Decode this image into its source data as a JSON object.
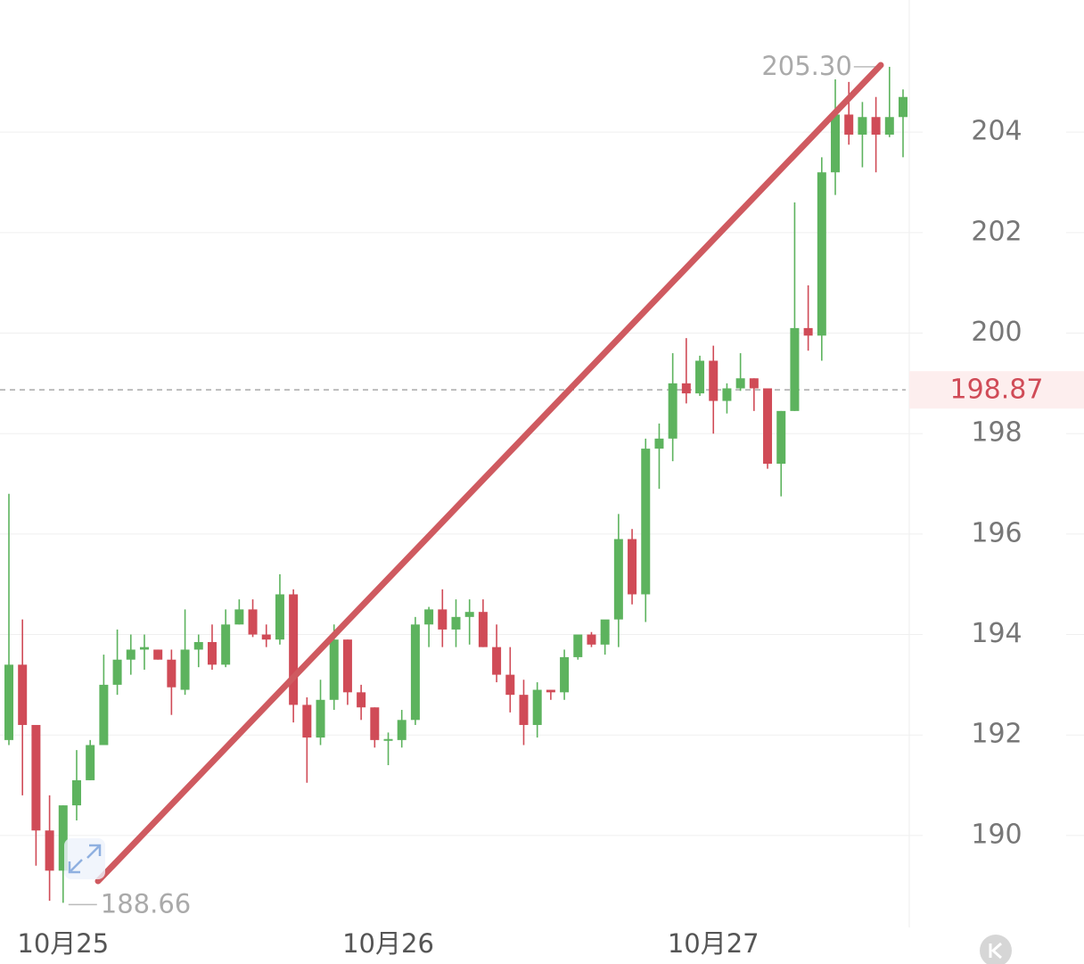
{
  "chart_data": {
    "type": "candlestick",
    "categories": [
      null,
      null,
      null,
      null,
      "10月25",
      null,
      null,
      null,
      null,
      null,
      null,
      null,
      null,
      null,
      null,
      null,
      null,
      null,
      null,
      null,
      null,
      null,
      null,
      null,
      null,
      null,
      null,
      null,
      "10月26",
      null,
      null,
      null,
      null,
      null,
      null,
      null,
      null,
      null,
      null,
      null,
      null,
      null,
      null,
      null,
      null,
      null,
      null,
      null,
      null,
      null,
      null,
      null,
      "10月27",
      null,
      null,
      null,
      null,
      null,
      null,
      null,
      null,
      null,
      null,
      null,
      null,
      null,
      null
    ],
    "open": [
      191.9,
      193.4,
      192.2,
      190.1,
      189.3,
      190.6,
      191.1,
      191.8,
      193.0,
      193.5,
      193.7,
      193.7,
      193.5,
      192.9,
      193.7,
      193.85,
      193.4,
      194.2,
      194.5,
      194.0,
      193.9,
      194.8,
      192.6,
      191.95,
      192.7,
      193.9,
      192.85,
      192.55,
      191.9,
      191.9,
      192.3,
      194.2,
      194.5,
      194.1,
      194.35,
      194.45,
      193.75,
      193.2,
      192.8,
      192.2,
      192.9,
      192.85,
      193.55,
      194.0,
      193.8,
      194.3,
      195.9,
      194.8,
      197.7,
      197.9,
      199.0,
      198.8,
      199.45,
      198.65,
      198.9,
      199.1,
      198.9,
      197.4,
      198.45,
      200.1,
      199.95,
      203.2,
      204.35,
      203.95,
      204.3,
      203.95,
      204.3
    ],
    "high": [
      196.8,
      194.3,
      192.2,
      190.8,
      190.6,
      191.7,
      191.9,
      193.6,
      194.1,
      194.0,
      194.0,
      193.7,
      193.7,
      194.5,
      194.0,
      194.2,
      194.5,
      194.7,
      194.7,
      194.2,
      195.2,
      194.9,
      192.75,
      193.1,
      194.2,
      193.9,
      193.0,
      192.55,
      192.05,
      192.5,
      194.35,
      194.55,
      194.9,
      194.7,
      194.7,
      194.7,
      194.2,
      193.75,
      193.1,
      193.05,
      192.9,
      193.7,
      193.95,
      194.05,
      194.15,
      196.4,
      196.1,
      197.9,
      198.2,
      199.6,
      199.9,
      199.55,
      199.75,
      199.0,
      199.6,
      199.1,
      198.9,
      198.45,
      202.6,
      200.95,
      203.5,
      205.05,
      205.0,
      204.6,
      204.7,
      205.3,
      204.85
    ],
    "low": [
      191.8,
      190.8,
      189.4,
      188.7,
      188.66,
      190.3,
      191.1,
      191.8,
      192.8,
      193.2,
      193.3,
      193.5,
      192.4,
      192.8,
      193.35,
      193.3,
      193.35,
      194.2,
      193.95,
      193.75,
      193.8,
      192.25,
      191.05,
      191.8,
      192.5,
      192.6,
      192.3,
      191.75,
      191.4,
      191.75,
      192.2,
      193.75,
      193.75,
      193.75,
      193.8,
      193.75,
      193.05,
      192.45,
      191.8,
      191.95,
      192.7,
      192.7,
      193.5,
      193.75,
      193.6,
      193.75,
      194.6,
      194.25,
      196.9,
      197.45,
      198.6,
      198.75,
      198.0,
      198.4,
      198.85,
      198.45,
      197.3,
      196.75,
      198.45,
      199.65,
      199.45,
      202.75,
      203.75,
      203.3,
      203.2,
      203.9,
      203.5
    ],
    "close": [
      193.4,
      192.2,
      190.1,
      189.3,
      190.6,
      191.1,
      191.8,
      193.0,
      193.5,
      193.7,
      193.75,
      193.5,
      192.95,
      193.7,
      193.85,
      193.4,
      194.2,
      194.5,
      194.0,
      193.9,
      194.8,
      192.6,
      191.95,
      192.7,
      193.9,
      192.85,
      192.55,
      191.9,
      191.92,
      192.3,
      194.2,
      194.5,
      194.1,
      194.35,
      194.45,
      193.75,
      193.2,
      192.8,
      192.2,
      192.9,
      192.85,
      193.55,
      194.0,
      193.8,
      194.3,
      195.9,
      194.8,
      197.7,
      197.9,
      199.0,
      198.8,
      199.45,
      198.65,
      198.9,
      199.1,
      198.9,
      197.4,
      198.45,
      200.1,
      199.95,
      203.2,
      204.35,
      203.95,
      204.3,
      203.95,
      204.3,
      204.7
    ],
    "up_color": "#5db35e",
    "down_color": "#d04b57",
    "ylim": [
      188.17,
      206.63
    ],
    "yticks": [
      190,
      192,
      194,
      196,
      198,
      200,
      202,
      204
    ],
    "grid": true,
    "current_price": 198.87,
    "max_label": {
      "value": 205.3,
      "label": "205.30"
    },
    "min_label": 188.66
  }
}
